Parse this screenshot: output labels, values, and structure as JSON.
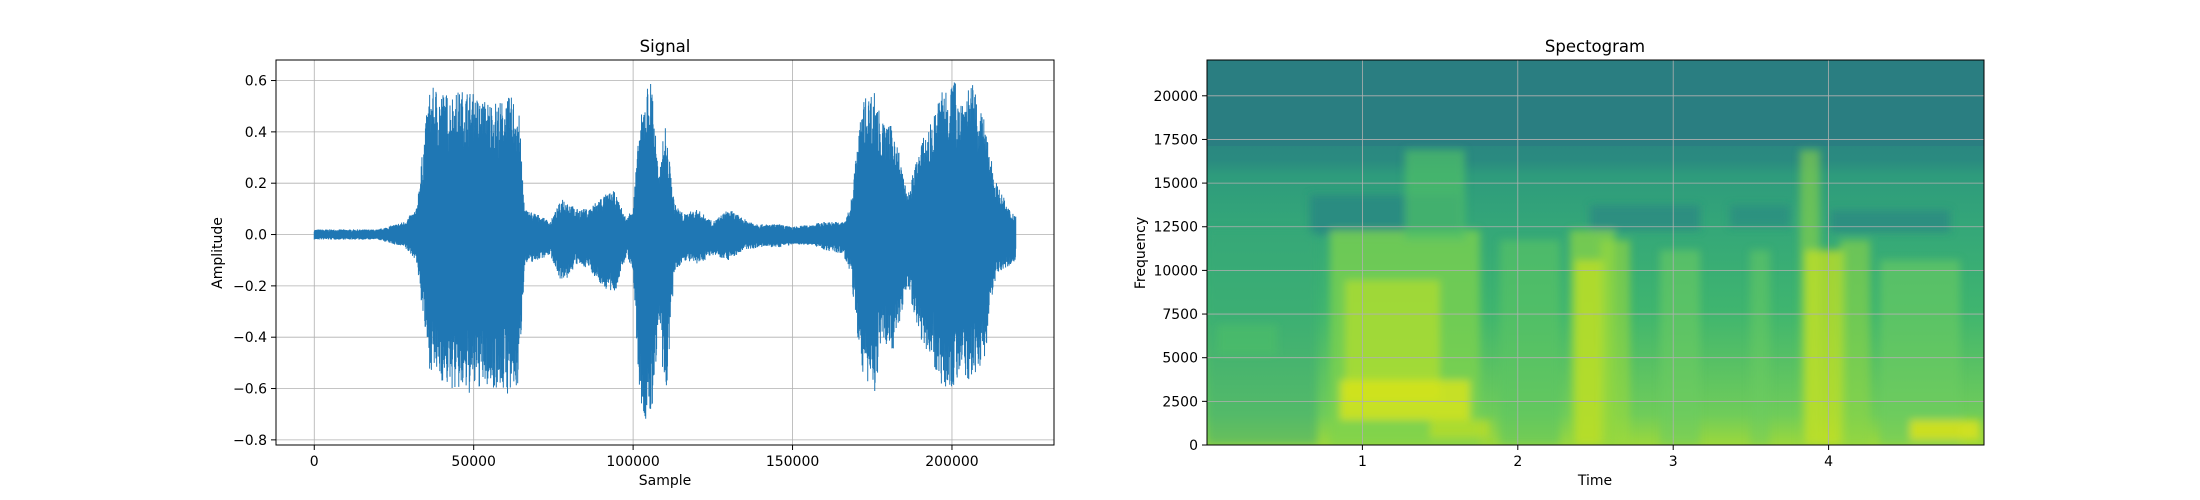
{
  "chart_data": [
    {
      "type": "line",
      "title": "Signal",
      "xlabel": "Sample",
      "ylabel": "Amplitude",
      "xlim": [
        -12000,
        232000
      ],
      "ylim": [
        -0.82,
        0.68
      ],
      "xticks": [
        0,
        50000,
        100000,
        150000,
        200000
      ],
      "yticks": [
        -0.8,
        -0.6,
        -0.4,
        -0.2,
        0.0,
        0.2,
        0.4,
        0.6
      ],
      "xtick_labels": [
        "0",
        "50000",
        "100000",
        "150000",
        "200000"
      ],
      "ytick_labels": [
        "−0.8",
        "−0.6",
        "−0.4",
        "−0.2",
        "0.0",
        "0.2",
        "0.4",
        "0.6"
      ],
      "grid": true,
      "series_color": "#1f77b4",
      "envelope": {
        "x": [
          0,
          5000,
          10000,
          20000,
          28000,
          32000,
          36000,
          38000,
          42000,
          48000,
          52000,
          58000,
          62000,
          64000,
          66000,
          70000,
          74000,
          78000,
          82000,
          86000,
          90000,
          94000,
          98000,
          100000,
          102000,
          104000,
          106000,
          108000,
          110000,
          113000,
          116000,
          120000,
          125000,
          130000,
          135000,
          140000,
          146000,
          150000,
          156000,
          160000,
          166000,
          168000,
          172000,
          176000,
          178000,
          182000,
          186000,
          190000,
          194000,
          197000,
          200000,
          203000,
          206000,
          210000,
          214000,
          218000,
          220000
        ],
        "upper": [
          0.02,
          0.02,
          0.02,
          0.02,
          0.05,
          0.1,
          0.56,
          0.58,
          0.55,
          0.57,
          0.53,
          0.52,
          0.54,
          0.52,
          0.1,
          0.08,
          0.05,
          0.15,
          0.1,
          0.1,
          0.15,
          0.17,
          0.06,
          0.12,
          0.42,
          0.58,
          0.61,
          0.22,
          0.44,
          0.12,
          0.08,
          0.1,
          0.05,
          0.1,
          0.06,
          0.04,
          0.04,
          0.03,
          0.04,
          0.05,
          0.05,
          0.1,
          0.53,
          0.57,
          0.44,
          0.42,
          0.15,
          0.35,
          0.45,
          0.58,
          0.62,
          0.55,
          0.6,
          0.45,
          0.2,
          0.1,
          0.08
        ],
        "lower": [
          -0.02,
          -0.02,
          -0.02,
          -0.02,
          -0.05,
          -0.1,
          -0.52,
          -0.55,
          -0.6,
          -0.63,
          -0.6,
          -0.6,
          -0.64,
          -0.6,
          -0.12,
          -0.1,
          -0.08,
          -0.2,
          -0.12,
          -0.13,
          -0.2,
          -0.24,
          -0.08,
          -0.15,
          -0.65,
          -0.75,
          -0.7,
          -0.35,
          -0.7,
          -0.15,
          -0.1,
          -0.12,
          -0.08,
          -0.1,
          -0.06,
          -0.05,
          -0.05,
          -0.04,
          -0.04,
          -0.06,
          -0.08,
          -0.15,
          -0.56,
          -0.62,
          -0.42,
          -0.45,
          -0.2,
          -0.4,
          -0.5,
          -0.6,
          -0.6,
          -0.55,
          -0.58,
          -0.5,
          -0.15,
          -0.12,
          -0.1
        ]
      }
    },
    {
      "type": "heatmap",
      "title": "Spectogram",
      "xlabel": "Time",
      "ylabel": "Frequency",
      "xlim": [
        0,
        5.0
      ],
      "ylim": [
        0,
        22050
      ],
      "xticks": [
        1,
        2,
        3,
        4
      ],
      "yticks": [
        0,
        2500,
        5000,
        7500,
        10000,
        12500,
        15000,
        17500,
        20000
      ],
      "xtick_labels": [
        "1",
        "2",
        "3",
        "4"
      ],
      "ytick_labels": [
        "0",
        "2500",
        "5000",
        "7500",
        "10000",
        "12500",
        "15000",
        "17500",
        "20000"
      ],
      "grid": true,
      "colormap": "viridis",
      "colors": {
        "background": "#2a7f80",
        "band": "#2fa37a",
        "loud": "#c8e020",
        "mid": "#6ccb5f"
      }
    }
  ]
}
